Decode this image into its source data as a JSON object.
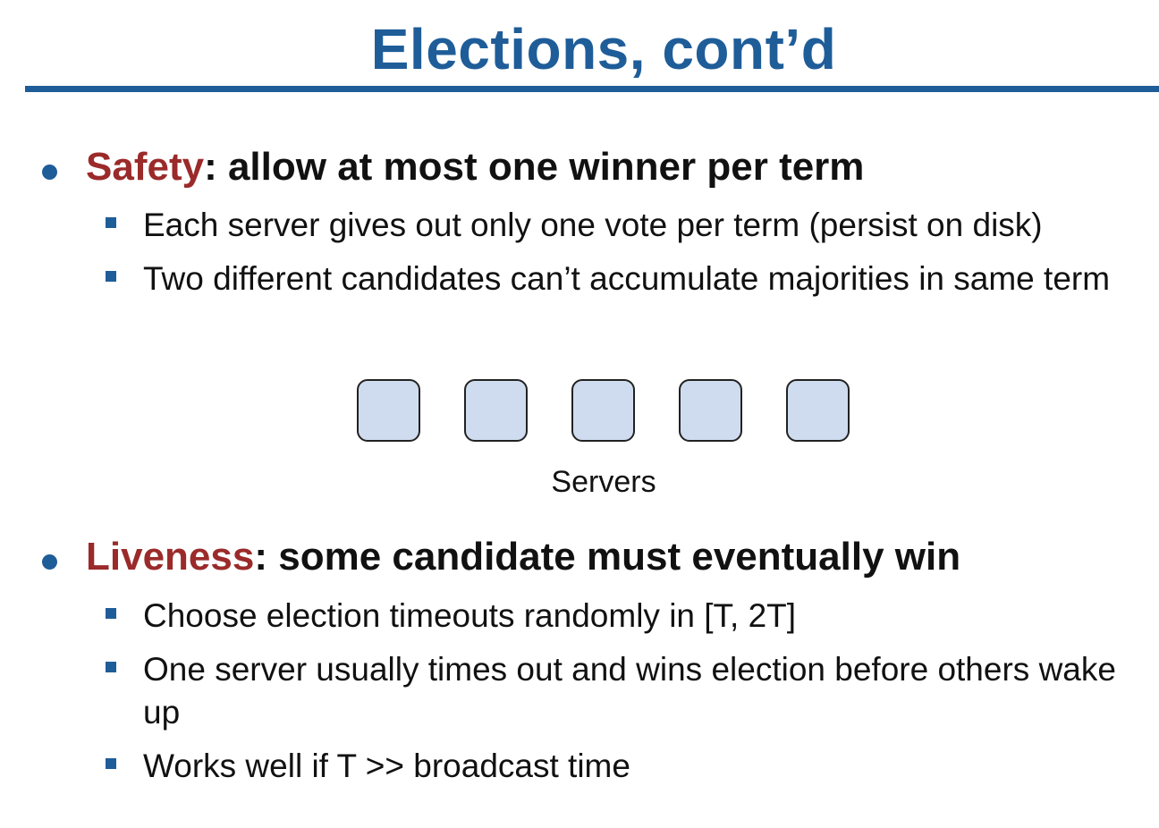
{
  "slide": {
    "title": "Elections, cont’d"
  },
  "safety": {
    "term": "Safety",
    "rest": ":  allow at most one winner per term",
    "points": [
      "Each server gives out only one vote per term (persist on disk)",
      "Two different candidates can’t accumulate majorities in same term"
    ]
  },
  "diagram": {
    "label": "Servers",
    "server_count": 5,
    "box_fill": "#cfdcef"
  },
  "liveness": {
    "term": "Liveness",
    "rest": ": some candidate must eventually win",
    "points": [
      "Choose election timeouts randomly in [T, 2T]",
      "One server usually times out and wins election before others wake up",
      "Works well if T >> broadcast time"
    ]
  },
  "colors": {
    "title": "#1f5d99",
    "term_highlight": "#9b2a2a",
    "bullet": "#1f5d99"
  }
}
